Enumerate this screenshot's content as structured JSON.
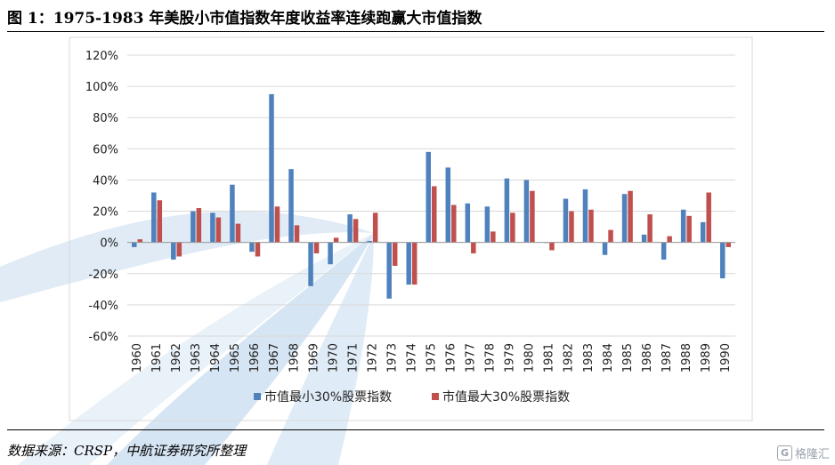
{
  "title": "图 1：1975-1983 年美股小市值指数年度收益率连续跑赢大市值指数",
  "source": "数据来源：CRSP，中航证券研究所整理",
  "watermark": "格隆汇",
  "watermark_icon": "G",
  "chart_data": {
    "type": "bar",
    "categories": [
      "1960",
      "1961",
      "1962",
      "1963",
      "1964",
      "1965",
      "1966",
      "1967",
      "1968",
      "1969",
      "1970",
      "1971",
      "1972",
      "1973",
      "1974",
      "1975",
      "1976",
      "1977",
      "1978",
      "1979",
      "1980",
      "1981",
      "1982",
      "1983",
      "1984",
      "1985",
      "1986",
      "1987",
      "1988",
      "1989",
      "1990"
    ],
    "series": [
      {
        "name": "市值最小30%股票指数",
        "color": "#4f81bd",
        "values": [
          -3,
          32,
          -11,
          20,
          19,
          37,
          -6,
          95,
          47,
          -28,
          -14,
          18,
          1,
          -36,
          -27,
          58,
          48,
          25,
          23,
          41,
          40,
          0,
          28,
          34,
          -8,
          31,
          5,
          -11,
          21,
          13,
          -23
        ]
      },
      {
        "name": "市值最大30%股票指数",
        "color": "#c0504d",
        "values": [
          2,
          27,
          -9,
          22,
          16,
          12,
          -9,
          23,
          11,
          -7,
          3,
          15,
          19,
          -15,
          -27,
          36,
          24,
          -7,
          7,
          19,
          33,
          -5,
          20,
          21,
          8,
          33,
          18,
          4,
          17,
          32,
          -3
        ]
      }
    ],
    "yticks": [
      "-60%",
      "-40%",
      "-20%",
      "0%",
      "20%",
      "40%",
      "60%",
      "80%",
      "100%",
      "120%"
    ],
    "ylim": [
      -60,
      120
    ],
    "ystep": 20,
    "grid": true,
    "legend": "bottom"
  }
}
